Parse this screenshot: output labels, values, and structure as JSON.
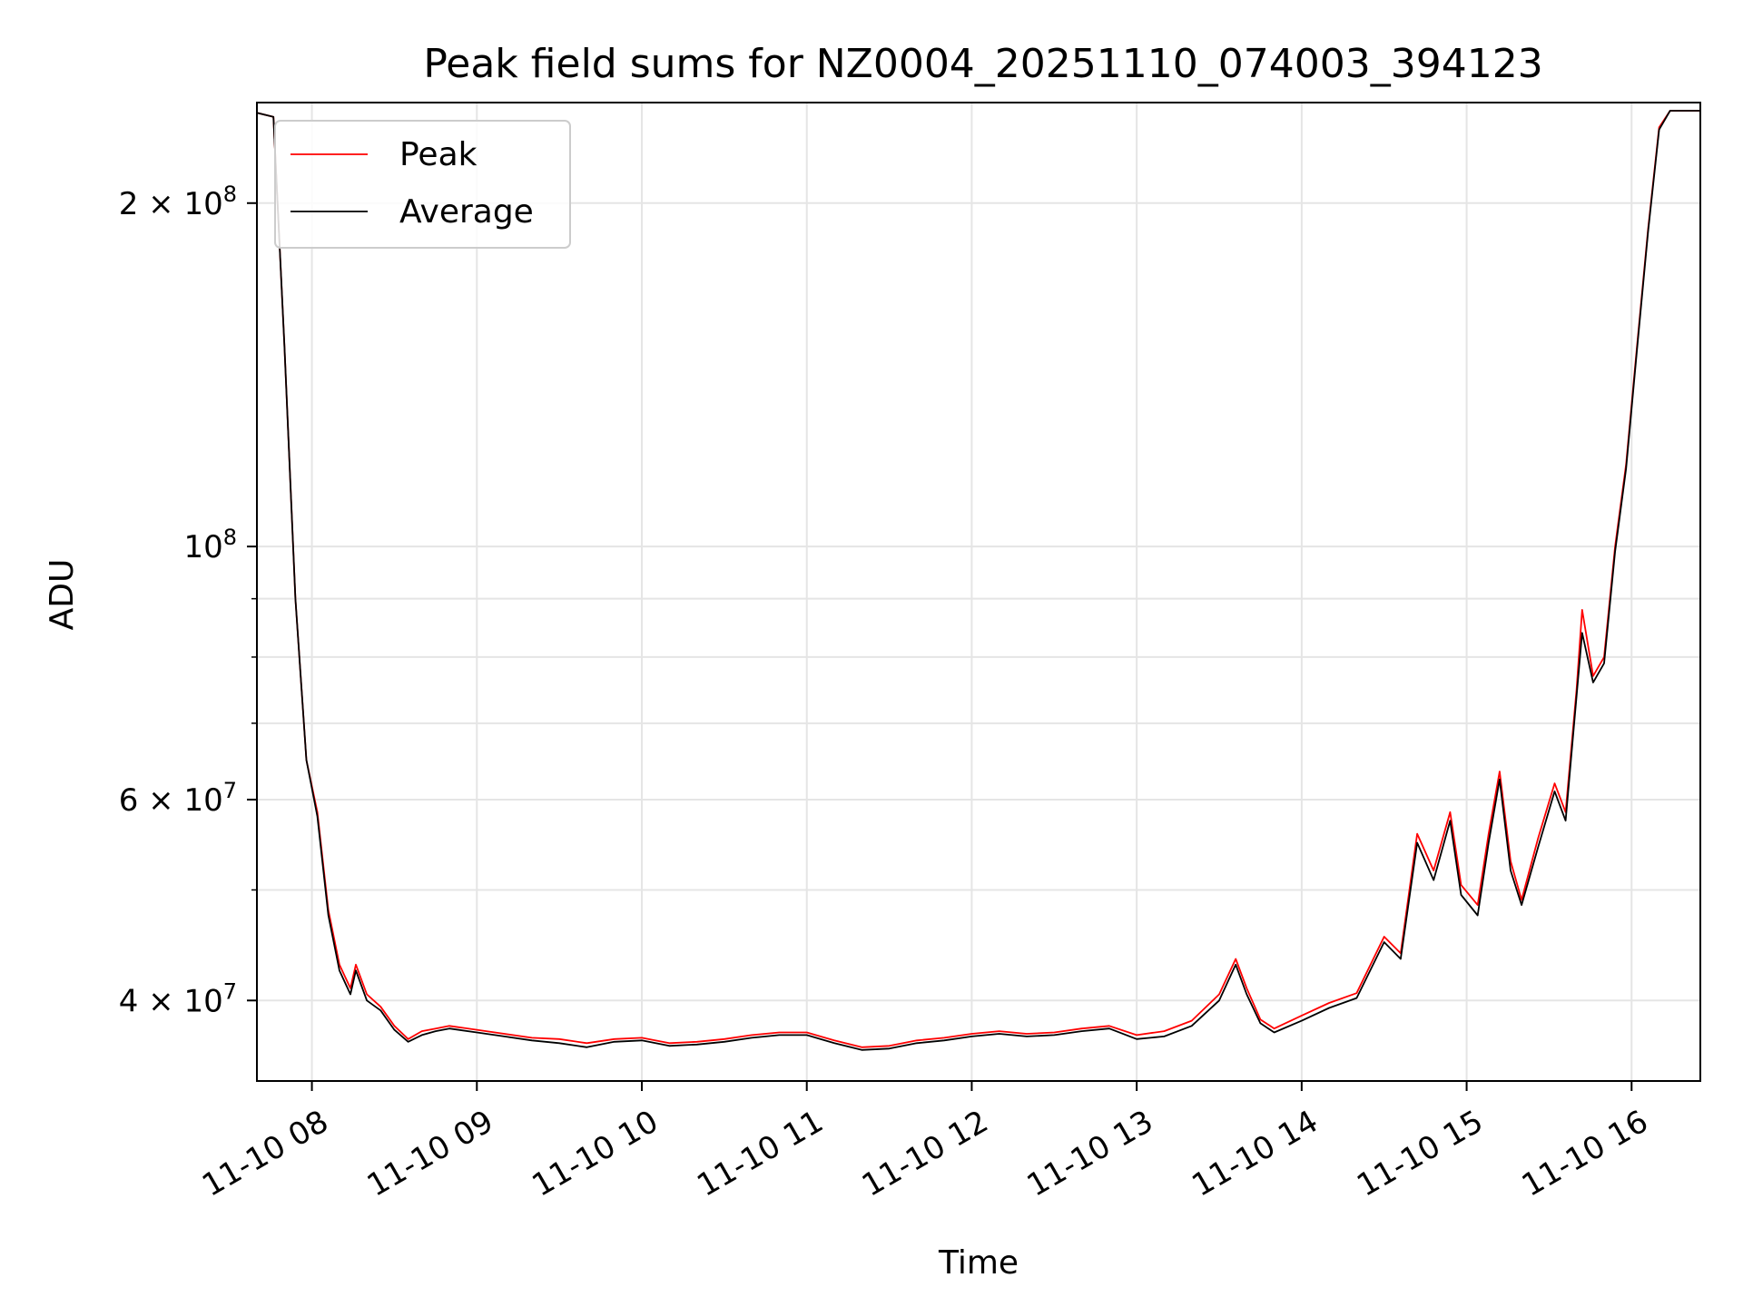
{
  "chart_data": {
    "type": "line",
    "title": "Peak field sums for NZ0004_20251110_074003_394123",
    "xlabel": "Time",
    "ylabel": "ADU",
    "y_scale": "log",
    "ylim": [
      34000000,
      245000000
    ],
    "xlim": [
      "2025-11-10T07:40",
      "2025-11-10T16:25"
    ],
    "grid": true,
    "legend_position": "top-left",
    "x_ticks": [
      {
        "time": "2025-11-10T08:00",
        "label": "11-10 08"
      },
      {
        "time": "2025-11-10T09:00",
        "label": "11-10 09"
      },
      {
        "time": "2025-11-10T10:00",
        "label": "11-10 10"
      },
      {
        "time": "2025-11-10T11:00",
        "label": "11-10 11"
      },
      {
        "time": "2025-11-10T12:00",
        "label": "11-10 12"
      },
      {
        "time": "2025-11-10T13:00",
        "label": "11-10 13"
      },
      {
        "time": "2025-11-10T14:00",
        "label": "11-10 14"
      },
      {
        "time": "2025-11-10T15:00",
        "label": "11-10 15"
      },
      {
        "time": "2025-11-10T16:00",
        "label": "11-10 16"
      }
    ],
    "y_ticks": [
      {
        "value": 40000000,
        "base": "4",
        "times": "×",
        "power": "10",
        "exp": "7"
      },
      {
        "value": 60000000,
        "base": "6",
        "times": "×",
        "power": "10",
        "exp": "7"
      },
      {
        "value": 100000000,
        "base": "",
        "times": "",
        "power": "10",
        "exp": "8"
      },
      {
        "value": 200000000,
        "base": "2",
        "times": "×",
        "power": "10",
        "exp": "8"
      }
    ],
    "y_minor_ticks": [
      50000000,
      70000000,
      80000000,
      90000000
    ],
    "series": [
      {
        "name": "Peak",
        "color": "#ff0000",
        "points": [
          [
            "2025-11-10T07:40",
            240000000
          ],
          [
            "2025-11-10T07:46",
            238000000
          ],
          [
            "2025-11-10T07:50",
            150000000
          ],
          [
            "2025-11-10T07:54",
            90000000
          ],
          [
            "2025-11-10T07:58",
            65000000
          ],
          [
            "2025-11-10T08:02",
            58500000
          ],
          [
            "2025-11-10T08:06",
            48000000
          ],
          [
            "2025-11-10T08:10",
            43000000
          ],
          [
            "2025-11-10T08:14",
            41000000
          ],
          [
            "2025-11-10T08:16",
            43000000
          ],
          [
            "2025-11-10T08:20",
            40500000
          ],
          [
            "2025-11-10T08:25",
            39500000
          ],
          [
            "2025-11-10T08:30",
            38000000
          ],
          [
            "2025-11-10T08:35",
            37000000
          ],
          [
            "2025-11-10T08:40",
            37600000
          ],
          [
            "2025-11-10T08:45",
            37800000
          ],
          [
            "2025-11-10T08:50",
            38000000
          ],
          [
            "2025-11-10T09:00",
            37700000
          ],
          [
            "2025-11-10T09:10",
            37400000
          ],
          [
            "2025-11-10T09:20",
            37100000
          ],
          [
            "2025-11-10T09:30",
            37000000
          ],
          [
            "2025-11-10T09:40",
            36700000
          ],
          [
            "2025-11-10T09:50",
            37000000
          ],
          [
            "2025-11-10T10:00",
            37100000
          ],
          [
            "2025-11-10T10:10",
            36700000
          ],
          [
            "2025-11-10T10:20",
            36800000
          ],
          [
            "2025-11-10T10:30",
            37000000
          ],
          [
            "2025-11-10T10:40",
            37300000
          ],
          [
            "2025-11-10T10:50",
            37500000
          ],
          [
            "2025-11-10T11:00",
            37500000
          ],
          [
            "2025-11-10T11:10",
            36900000
          ],
          [
            "2025-11-10T11:20",
            36400000
          ],
          [
            "2025-11-10T11:30",
            36500000
          ],
          [
            "2025-11-10T11:40",
            36900000
          ],
          [
            "2025-11-10T11:50",
            37100000
          ],
          [
            "2025-11-10T12:00",
            37400000
          ],
          [
            "2025-11-10T12:10",
            37600000
          ],
          [
            "2025-11-10T12:20",
            37400000
          ],
          [
            "2025-11-10T12:30",
            37500000
          ],
          [
            "2025-11-10T12:40",
            37800000
          ],
          [
            "2025-11-10T12:50",
            38000000
          ],
          [
            "2025-11-10T13:00",
            37300000
          ],
          [
            "2025-11-10T13:10",
            37600000
          ],
          [
            "2025-11-10T13:20",
            38400000
          ],
          [
            "2025-11-10T13:30",
            40500000
          ],
          [
            "2025-11-10T13:36",
            43500000
          ],
          [
            "2025-11-10T13:40",
            41000000
          ],
          [
            "2025-11-10T13:45",
            38500000
          ],
          [
            "2025-11-10T13:50",
            37800000
          ],
          [
            "2025-11-10T14:00",
            38800000
          ],
          [
            "2025-11-10T14:10",
            39800000
          ],
          [
            "2025-11-10T14:20",
            40600000
          ],
          [
            "2025-11-10T14:30",
            45500000
          ],
          [
            "2025-11-10T14:36",
            44000000
          ],
          [
            "2025-11-10T14:42",
            56000000
          ],
          [
            "2025-11-10T14:48",
            52000000
          ],
          [
            "2025-11-10T14:54",
            58500000
          ],
          [
            "2025-11-10T14:58",
            50500000
          ],
          [
            "2025-11-10T15:04",
            48500000
          ],
          [
            "2025-11-10T15:08",
            56000000
          ],
          [
            "2025-11-10T15:12",
            63500000
          ],
          [
            "2025-11-10T15:16",
            53000000
          ],
          [
            "2025-11-10T15:20",
            49000000
          ],
          [
            "2025-11-10T15:26",
            55500000
          ],
          [
            "2025-11-10T15:32",
            62000000
          ],
          [
            "2025-11-10T15:36",
            58500000
          ],
          [
            "2025-11-10T15:40",
            75000000
          ],
          [
            "2025-11-10T15:42",
            88000000
          ],
          [
            "2025-11-10T15:46",
            77000000
          ],
          [
            "2025-11-10T15:50",
            80000000
          ],
          [
            "2025-11-10T15:54",
            100000000
          ],
          [
            "2025-11-10T15:58",
            118000000
          ],
          [
            "2025-11-10T16:02",
            150000000
          ],
          [
            "2025-11-10T16:06",
            190000000
          ],
          [
            "2025-11-10T16:10",
            233000000
          ],
          [
            "2025-11-10T16:14",
            241000000
          ],
          [
            "2025-11-10T16:25",
            241000000
          ]
        ]
      },
      {
        "name": "Average",
        "color": "#000000",
        "points": [
          [
            "2025-11-10T07:40",
            240000000
          ],
          [
            "2025-11-10T07:46",
            238000000
          ],
          [
            "2025-11-10T07:50",
            150000000
          ],
          [
            "2025-11-10T07:54",
            90000000
          ],
          [
            "2025-11-10T07:58",
            65000000
          ],
          [
            "2025-11-10T08:02",
            58000000
          ],
          [
            "2025-11-10T08:06",
            47500000
          ],
          [
            "2025-11-10T08:10",
            42500000
          ],
          [
            "2025-11-10T08:14",
            40500000
          ],
          [
            "2025-11-10T08:16",
            42500000
          ],
          [
            "2025-11-10T08:20",
            40000000
          ],
          [
            "2025-11-10T08:25",
            39200000
          ],
          [
            "2025-11-10T08:30",
            37700000
          ],
          [
            "2025-11-10T08:35",
            36800000
          ],
          [
            "2025-11-10T08:40",
            37300000
          ],
          [
            "2025-11-10T08:45",
            37600000
          ],
          [
            "2025-11-10T08:50",
            37800000
          ],
          [
            "2025-11-10T09:00",
            37500000
          ],
          [
            "2025-11-10T09:10",
            37200000
          ],
          [
            "2025-11-10T09:20",
            36900000
          ],
          [
            "2025-11-10T09:30",
            36700000
          ],
          [
            "2025-11-10T09:40",
            36400000
          ],
          [
            "2025-11-10T09:50",
            36800000
          ],
          [
            "2025-11-10T10:00",
            36900000
          ],
          [
            "2025-11-10T10:10",
            36500000
          ],
          [
            "2025-11-10T10:20",
            36600000
          ],
          [
            "2025-11-10T10:30",
            36800000
          ],
          [
            "2025-11-10T10:40",
            37100000
          ],
          [
            "2025-11-10T10:50",
            37300000
          ],
          [
            "2025-11-10T11:00",
            37300000
          ],
          [
            "2025-11-10T11:10",
            36700000
          ],
          [
            "2025-11-10T11:20",
            36200000
          ],
          [
            "2025-11-10T11:30",
            36300000
          ],
          [
            "2025-11-10T11:40",
            36700000
          ],
          [
            "2025-11-10T11:50",
            36900000
          ],
          [
            "2025-11-10T12:00",
            37200000
          ],
          [
            "2025-11-10T12:10",
            37400000
          ],
          [
            "2025-11-10T12:20",
            37200000
          ],
          [
            "2025-11-10T12:30",
            37300000
          ],
          [
            "2025-11-10T12:40",
            37600000
          ],
          [
            "2025-11-10T12:50",
            37800000
          ],
          [
            "2025-11-10T13:00",
            37000000
          ],
          [
            "2025-11-10T13:10",
            37200000
          ],
          [
            "2025-11-10T13:20",
            38000000
          ],
          [
            "2025-11-10T13:30",
            40000000
          ],
          [
            "2025-11-10T13:36",
            43000000
          ],
          [
            "2025-11-10T13:40",
            40500000
          ],
          [
            "2025-11-10T13:45",
            38200000
          ],
          [
            "2025-11-10T13:50",
            37500000
          ],
          [
            "2025-11-10T14:00",
            38400000
          ],
          [
            "2025-11-10T14:10",
            39400000
          ],
          [
            "2025-11-10T14:20",
            40200000
          ],
          [
            "2025-11-10T14:30",
            45000000
          ],
          [
            "2025-11-10T14:36",
            43500000
          ],
          [
            "2025-11-10T14:42",
            55000000
          ],
          [
            "2025-11-10T14:48",
            51000000
          ],
          [
            "2025-11-10T14:54",
            57500000
          ],
          [
            "2025-11-10T14:58",
            49500000
          ],
          [
            "2025-11-10T15:04",
            47500000
          ],
          [
            "2025-11-10T15:08",
            55000000
          ],
          [
            "2025-11-10T15:12",
            62500000
          ],
          [
            "2025-11-10T15:16",
            52000000
          ],
          [
            "2025-11-10T15:20",
            48500000
          ],
          [
            "2025-11-10T15:26",
            54500000
          ],
          [
            "2025-11-10T15:32",
            61000000
          ],
          [
            "2025-11-10T15:36",
            57500000
          ],
          [
            "2025-11-10T15:40",
            74000000
          ],
          [
            "2025-11-10T15:42",
            84000000
          ],
          [
            "2025-11-10T15:46",
            76000000
          ],
          [
            "2025-11-10T15:50",
            79000000
          ],
          [
            "2025-11-10T15:54",
            99000000
          ],
          [
            "2025-11-10T15:58",
            117000000
          ],
          [
            "2025-11-10T16:02",
            149000000
          ],
          [
            "2025-11-10T16:06",
            189000000
          ],
          [
            "2025-11-10T16:10",
            232000000
          ],
          [
            "2025-11-10T16:14",
            241000000
          ],
          [
            "2025-11-10T16:25",
            241000000
          ]
        ]
      }
    ]
  }
}
